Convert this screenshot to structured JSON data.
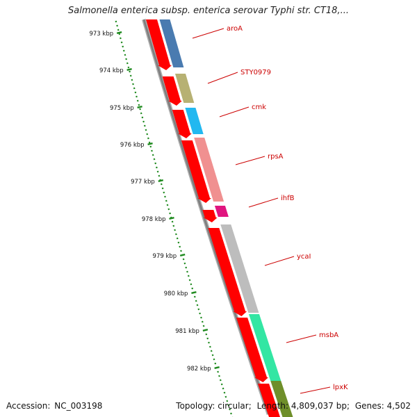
{
  "title": "Salmonella enterica subsp. enterica serovar Typhi str. CT18,...",
  "footer": {
    "accession_label": "Accession:",
    "accession": "NC_003198",
    "topology_label": "Topology:",
    "topology": "circular;",
    "length_label": "Length:",
    "length": "4,809,037 bp;",
    "genes_label": "Genes:",
    "genes": "4,502"
  },
  "ticks": [
    {
      "label": "973 kbp"
    },
    {
      "label": "974 kbp"
    },
    {
      "label": "975 kbp"
    },
    {
      "label": "976 kbp"
    },
    {
      "label": "977 kbp"
    },
    {
      "label": "978 kbp"
    },
    {
      "label": "979 kbp"
    },
    {
      "label": "980 kbp"
    },
    {
      "label": "981 kbp"
    },
    {
      "label": "982 kbp"
    }
  ],
  "genes_list": [
    {
      "name": "aroA",
      "color": "#4a7bb0"
    },
    {
      "name": "STY0979",
      "color": "#b7b173"
    },
    {
      "name": "cmk",
      "color": "#22b8f0"
    },
    {
      "name": "rpsA",
      "color": "#f09090"
    },
    {
      "name": "ihfB",
      "color": "#e0157f"
    },
    {
      "name": "ycaI",
      "color": "#bdbdbd"
    },
    {
      "name": "msbA",
      "color": "#33e6a3"
    },
    {
      "name": "lpxK",
      "color": "#6f8f2a"
    }
  ],
  "colors": {
    "cds": "#ff0000",
    "gene_label": "#cc0000",
    "tick": "#1f8a1f",
    "backbone": "#808080"
  }
}
